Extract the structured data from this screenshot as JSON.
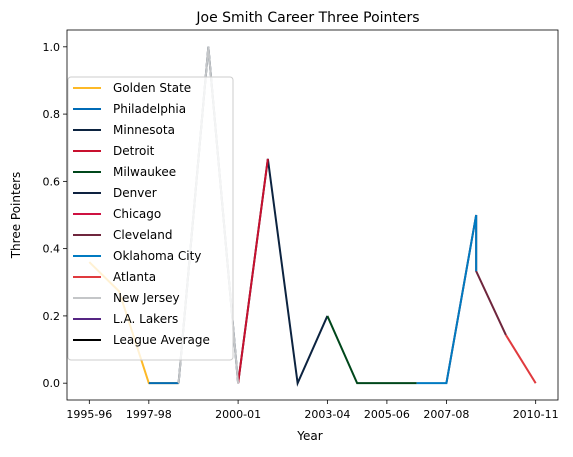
{
  "chart_data": {
    "type": "line",
    "title": "Joe Smith  Career Three Pointers",
    "xlabel": "Year",
    "ylabel": "Three Pointers",
    "x_tick_labels": [
      "1995-96",
      "1997-98",
      "2000-01",
      "2003-04",
      "2005-06",
      "2007-08",
      "2010-11"
    ],
    "x_ticks": [
      "1995-96",
      "1997-98",
      "2000-01",
      "2003-04",
      "2005-06",
      "2007-08",
      "2010-11"
    ],
    "x_categories": [
      "1995-96",
      "1996-97",
      "1997-98",
      "1998-99",
      "1999-00",
      "2000-01",
      "2001-02",
      "2002-03",
      "2003-04",
      "2004-05",
      "2005-06",
      "2006-07",
      "2007-08",
      "2008-09",
      "2009-10",
      "2010-11"
    ],
    "y_ticks": [
      0.0,
      0.2,
      0.4,
      0.6,
      0.8,
      1.0
    ],
    "y_tick_labels": [
      "0.0",
      "0.2",
      "0.4",
      "0.6",
      "0.8",
      "1.0"
    ],
    "xlim": [
      "1995-96",
      "2010-11"
    ],
    "ylim": [
      -0.05,
      1.05
    ],
    "grid": false,
    "legend_position": "center-left",
    "series": [
      {
        "name": "Golden State",
        "color": "#FDB927",
        "points": [
          [
            "1995-96",
            0.36
          ],
          [
            "1996-97",
            0.273
          ],
          [
            "1997-98",
            0.0
          ],
          [
            "1998-99",
            0.0
          ]
        ]
      },
      {
        "name": "Philadelphia",
        "color": "#006BB6",
        "points": [
          [
            "1997-98",
            0.0
          ],
          [
            "1998-99",
            0.0
          ]
        ]
      },
      {
        "name": "Minnesota",
        "color": "#0C2340",
        "points": [
          [
            "1998-99",
            0.0
          ],
          [
            "1999-00",
            1.0
          ],
          [
            "2000-01",
            0.0
          ],
          [
            "2001-02",
            0.667
          ],
          [
            "2002-03",
            0.0
          ],
          [
            "2003-04",
            0.2
          ]
        ]
      },
      {
        "name": "Detroit",
        "color": "#C8102E",
        "points": [
          [
            "2000-01",
            0.0
          ],
          [
            "2001-02",
            0.667
          ]
        ]
      },
      {
        "name": "Milwaukee",
        "color": "#00471B",
        "points": [
          [
            "2003-04",
            0.2
          ],
          [
            "2004-05",
            0.0
          ],
          [
            "2005-06",
            0.0
          ],
          [
            "2006-07",
            0.0
          ]
        ]
      },
      {
        "name": "Denver",
        "color": "#0E2240",
        "points": [
          [
            "2006-07",
            0.0
          ]
        ]
      },
      {
        "name": "Chicago",
        "color": "#CE1141",
        "points": [
          [
            "2006-07",
            0.0
          ]
        ]
      },
      {
        "name": "Cleveland",
        "color": "#6F263D",
        "points": [
          [
            "2007-08",
            0.0
          ],
          [
            "2008-09",
            0.5
          ],
          [
            "2008-09",
            0.333
          ],
          [
            "2009-10",
            0.143
          ]
        ]
      },
      {
        "name": "Oklahoma City",
        "color": "#007AC1",
        "points": [
          [
            "2006-07",
            0.0
          ],
          [
            "2007-08",
            0.0
          ],
          [
            "2008-09",
            0.5
          ],
          [
            "2008-09",
            0.333
          ]
        ]
      },
      {
        "name": "Atlanta",
        "color": "#E03A3E",
        "points": [
          [
            "2009-10",
            0.143
          ],
          [
            "2010-11",
            0.0
          ]
        ]
      },
      {
        "name": "New Jersey",
        "color": "#C4C6C8",
        "points": [
          [
            "1998-99",
            0.0
          ],
          [
            "1999-00",
            1.0
          ],
          [
            "2000-01",
            0.0
          ]
        ]
      },
      {
        "name": "L.A. Lakers",
        "color": "#552583",
        "points": []
      },
      {
        "name": "League Average",
        "color": "#000000",
        "points": []
      }
    ]
  }
}
